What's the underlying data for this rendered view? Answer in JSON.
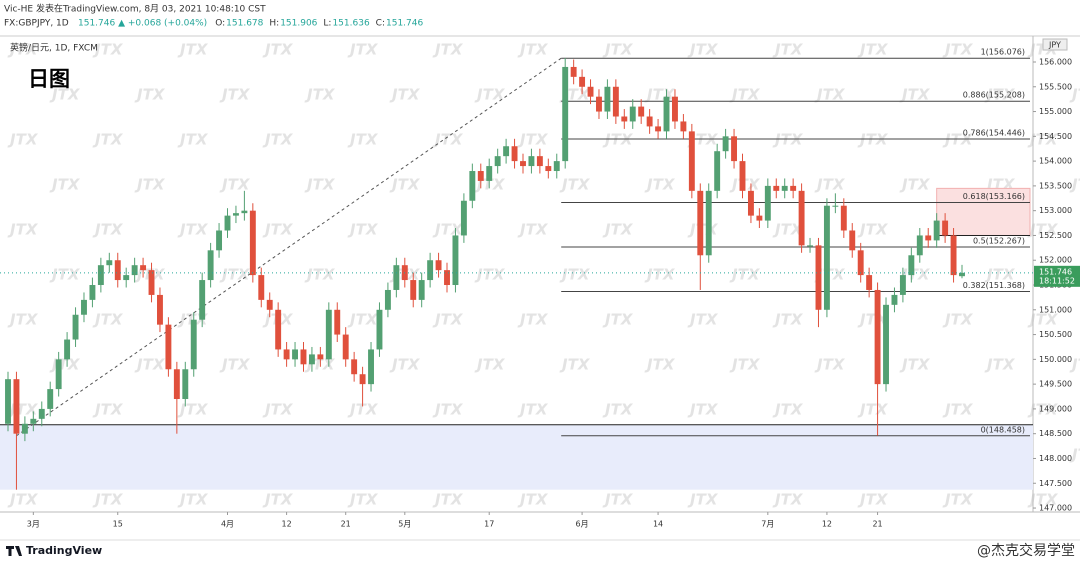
{
  "chart_data": {
    "type": "candlestick",
    "header_line": "Vic-HE 发表在TradingView.com, 8月 03, 2021 10:48:10 CST",
    "symbol": "FX:GBPJPY, 1D",
    "change": "151.746 ▲ +0.068 (+0.04%)",
    "ohlc_text": [
      [
        "O:",
        "151.678"
      ],
      [
        "H:",
        "151.906"
      ],
      [
        "L:",
        "151.636"
      ],
      [
        "C:",
        "151.746"
      ]
    ],
    "pane_title": "英镑/日元, 1D, FXCM",
    "title": "日图",
    "currency": "JPY",
    "watermark": "JTX",
    "brand": "TradingView",
    "credit": "@杰克交易学堂",
    "up_color": "#53a072",
    "down_color": "#e0503c",
    "categories": [
      null,
      null,
      null,
      "3月",
      null,
      null,
      null,
      null,
      null,
      null,
      null,
      null,
      null,
      "15",
      null,
      null,
      null,
      null,
      null,
      null,
      null,
      null,
      null,
      null,
      null,
      null,
      "4月",
      null,
      null,
      null,
      null,
      null,
      null,
      "12",
      null,
      null,
      null,
      null,
      null,
      null,
      "21",
      null,
      null,
      null,
      null,
      null,
      null,
      "5月",
      null,
      null,
      null,
      null,
      null,
      null,
      null,
      null,
      null,
      "17",
      null,
      null,
      null,
      null,
      null,
      null,
      null,
      null,
      null,
      null,
      "6月",
      null,
      null,
      null,
      null,
      null,
      null,
      null,
      null,
      "14",
      null,
      null,
      null,
      null,
      null,
      null,
      null,
      null,
      null,
      null,
      null,
      null,
      "7月",
      null,
      null,
      null,
      null,
      null,
      null,
      "12",
      null,
      null,
      null,
      null,
      null,
      "21",
      null,
      null,
      null,
      null,
      null,
      null,
      null,
      null,
      null,
      null
    ],
    "open": [
      148.7,
      149.6,
      148.5,
      148.7,
      148.8,
      149.0,
      149.4,
      150.0,
      150.4,
      150.9,
      151.2,
      151.5,
      151.9,
      152.0,
      151.6,
      151.7,
      151.9,
      151.8,
      151.3,
      150.7,
      149.8,
      149.2,
      149.8,
      150.8,
      151.6,
      152.2,
      152.6,
      152.9,
      152.95,
      153.0,
      151.7,
      151.2,
      151.0,
      150.2,
      150.0,
      150.2,
      149.9,
      150.1,
      150.0,
      151.0,
      150.5,
      150.0,
      149.7,
      149.5,
      150.2,
      151.0,
      151.4,
      151.9,
      151.6,
      151.2,
      151.6,
      152.0,
      151.8,
      151.5,
      152.5,
      153.2,
      153.8,
      153.6,
      153.9,
      154.1,
      154.3,
      154.0,
      153.9,
      154.1,
      153.9,
      153.8,
      154.0,
      155.9,
      155.7,
      155.5,
      155.3,
      155.0,
      155.5,
      154.9,
      154.8,
      155.1,
      154.9,
      154.7,
      154.6,
      155.3,
      154.8,
      154.6,
      153.4,
      152.1,
      153.4,
      154.2,
      154.5,
      154.0,
      153.4,
      152.9,
      152.8,
      153.5,
      153.4,
      153.5,
      153.4,
      152.3,
      152.3,
      151.0,
      153.1,
      153.1,
      152.6,
      152.2,
      151.7,
      151.4,
      149.5,
      151.1,
      151.3,
      151.7,
      152.1,
      152.5,
      152.4,
      152.8,
      152.5,
      151.678
    ],
    "high": [
      149.75,
      149.75,
      148.85,
      148.95,
      149.15,
      149.55,
      150.15,
      150.55,
      151.05,
      151.35,
      151.65,
      152.05,
      152.15,
      152.15,
      151.85,
      152.05,
      152.05,
      151.95,
      151.45,
      150.85,
      149.95,
      149.95,
      150.95,
      151.75,
      152.35,
      152.75,
      153.05,
      153.1,
      153.4,
      153.15,
      151.85,
      151.35,
      151.15,
      150.35,
      150.35,
      150.35,
      150.25,
      150.25,
      151.15,
      151.15,
      150.65,
      150.15,
      149.85,
      150.35,
      151.15,
      151.55,
      152.05,
      152.05,
      151.75,
      151.75,
      152.15,
      152.15,
      151.95,
      152.65,
      153.35,
      153.95,
      153.95,
      154.05,
      154.25,
      154.45,
      154.45,
      154.15,
      154.25,
      154.25,
      154.05,
      154.15,
      156.08,
      156.05,
      155.85,
      155.65,
      155.45,
      155.65,
      155.65,
      155.05,
      155.25,
      155.25,
      155.05,
      154.85,
      155.45,
      155.45,
      154.95,
      154.75,
      153.55,
      153.55,
      154.35,
      154.65,
      154.65,
      154.15,
      153.55,
      153.05,
      153.65,
      153.65,
      153.65,
      153.65,
      153.55,
      152.45,
      152.45,
      153.25,
      153.35,
      153.25,
      152.75,
      152.35,
      151.85,
      151.55,
      151.25,
      151.45,
      151.85,
      152.25,
      152.65,
      152.65,
      152.95,
      152.95,
      152.65,
      151.906
    ],
    "low": [
      148.55,
      147.37,
      148.35,
      148.55,
      148.65,
      148.85,
      149.25,
      149.85,
      150.25,
      150.75,
      151.05,
      151.35,
      151.75,
      151.45,
      151.45,
      151.55,
      151.65,
      151.15,
      150.55,
      149.65,
      148.5,
      149.05,
      149.65,
      150.65,
      151.45,
      152.05,
      152.45,
      152.75,
      152.8,
      151.55,
      151.05,
      150.85,
      150.05,
      149.85,
      149.85,
      149.75,
      149.75,
      149.85,
      149.85,
      150.35,
      149.85,
      149.55,
      149.05,
      149.35,
      150.05,
      150.85,
      151.25,
      151.45,
      151.05,
      151.05,
      151.45,
      151.65,
      151.35,
      151.35,
      152.35,
      153.05,
      153.45,
      153.45,
      153.75,
      153.95,
      153.85,
      153.75,
      153.75,
      153.75,
      153.65,
      153.65,
      153.85,
      155.55,
      155.35,
      155.15,
      154.85,
      154.85,
      154.75,
      154.65,
      154.65,
      154.75,
      154.55,
      154.45,
      154.45,
      154.65,
      154.45,
      153.25,
      151.4,
      151.95,
      153.25,
      154.05,
      153.85,
      153.25,
      152.75,
      152.65,
      152.65,
      153.25,
      153.25,
      153.25,
      152.15,
      152.15,
      150.65,
      150.85,
      152.95,
      152.45,
      152.05,
      151.55,
      151.25,
      148.46,
      149.35,
      150.95,
      151.15,
      151.55,
      151.95,
      152.25,
      152.25,
      152.35,
      151.55,
      151.636
    ],
    "close": [
      149.6,
      148.5,
      148.7,
      148.8,
      149.0,
      149.4,
      150.0,
      150.4,
      150.9,
      151.2,
      151.5,
      151.9,
      152.0,
      151.6,
      151.7,
      151.9,
      151.8,
      151.3,
      150.7,
      149.8,
      149.2,
      149.8,
      150.8,
      151.6,
      152.2,
      152.6,
      152.9,
      152.95,
      153.0,
      151.7,
      151.2,
      151.0,
      150.2,
      150.0,
      150.2,
      149.9,
      150.1,
      150.0,
      151.0,
      150.5,
      150.0,
      149.7,
      149.5,
      150.2,
      151.0,
      151.4,
      151.9,
      151.6,
      151.2,
      151.6,
      152.0,
      151.8,
      151.5,
      152.5,
      153.2,
      153.8,
      153.6,
      153.9,
      154.1,
      154.3,
      154.0,
      153.9,
      154.1,
      153.9,
      153.8,
      154.0,
      155.9,
      155.7,
      155.5,
      155.3,
      155.0,
      155.5,
      154.9,
      154.8,
      155.1,
      154.9,
      154.7,
      154.6,
      155.3,
      154.8,
      154.6,
      153.4,
      152.1,
      153.4,
      154.2,
      154.5,
      154.0,
      153.4,
      152.9,
      152.8,
      153.5,
      153.4,
      153.5,
      153.4,
      152.3,
      152.3,
      151.0,
      153.1,
      153.1,
      152.6,
      152.2,
      151.7,
      151.4,
      149.5,
      151.1,
      151.3,
      151.7,
      152.1,
      152.5,
      152.4,
      152.8,
      152.5,
      151.7,
      151.746
    ],
    "ylim": [
      146.92,
      156.484
    ],
    "yticks": [
      {
        "value": 147,
        "label": "147.000"
      },
      {
        "value": 147.5,
        "label": "147.500"
      },
      {
        "value": 148,
        "label": "148.000"
      },
      {
        "value": 148.5,
        "label": "148.500"
      },
      {
        "value": 149,
        "label": "149.000"
      },
      {
        "value": 149.5,
        "label": "149.500"
      },
      {
        "value": 150,
        "label": "150.000"
      },
      {
        "value": 150.5,
        "label": "150.500"
      },
      {
        "value": 151,
        "label": "151.000"
      },
      {
        "value": 151.5,
        "label": "151.500"
      },
      {
        "value": 152,
        "label": "152.000"
      },
      {
        "value": 152.5,
        "label": "152.500"
      },
      {
        "value": 153,
        "label": "153.000"
      },
      {
        "value": 153.5,
        "label": "153.500"
      },
      {
        "value": 154,
        "label": "154.000"
      },
      {
        "value": 154.5,
        "label": "154.500"
      },
      {
        "value": 155,
        "label": "155.000"
      },
      {
        "value": 155.5,
        "label": "155.500"
      },
      {
        "value": 156,
        "label": "156.000"
      }
    ],
    "fib_levels": [
      {
        "value": 156.076,
        "label": "1(156.076)"
      },
      {
        "value": 155.208,
        "label": "0.886(155.208)"
      },
      {
        "value": 154.446,
        "label": "0.786(154.446)"
      },
      {
        "value": 153.166,
        "label": "0.618(153.166)"
      },
      {
        "value": 152.267,
        "label": "0.5(152.267)"
      },
      {
        "value": 151.368,
        "label": "0.382(151.368)"
      },
      {
        "value": 148.458,
        "label": "0(148.458)"
      }
    ],
    "support_zone": [
      148.68,
      147.37
    ],
    "resistance_zone": [
      153.45,
      152.5
    ],
    "last_price": {
      "value": 151.746,
      "label": "151.746"
    },
    "countdown": "18:11:52"
  }
}
